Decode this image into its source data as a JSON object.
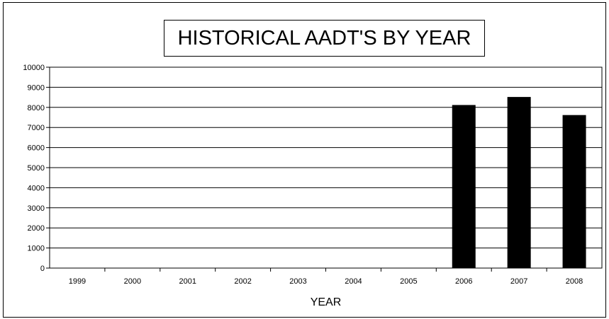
{
  "chart_data": {
    "type": "bar",
    "title": "HISTORICAL AADT'S BY YEAR",
    "xlabel": "YEAR",
    "ylabel": "",
    "categories": [
      "1999",
      "2000",
      "2001",
      "2002",
      "2003",
      "2004",
      "2005",
      "2006",
      "2007",
      "2008"
    ],
    "values": [
      0,
      0,
      0,
      0,
      0,
      0,
      0,
      8100,
      8500,
      7600
    ],
    "ylim": [
      0,
      10000
    ],
    "yticks": [
      "0",
      "1000",
      "2000",
      "3000",
      "4000",
      "5000",
      "6000",
      "7000",
      "8000",
      "9000",
      "10000"
    ],
    "grid": true,
    "legend": "none",
    "bar_color": "#000000"
  }
}
